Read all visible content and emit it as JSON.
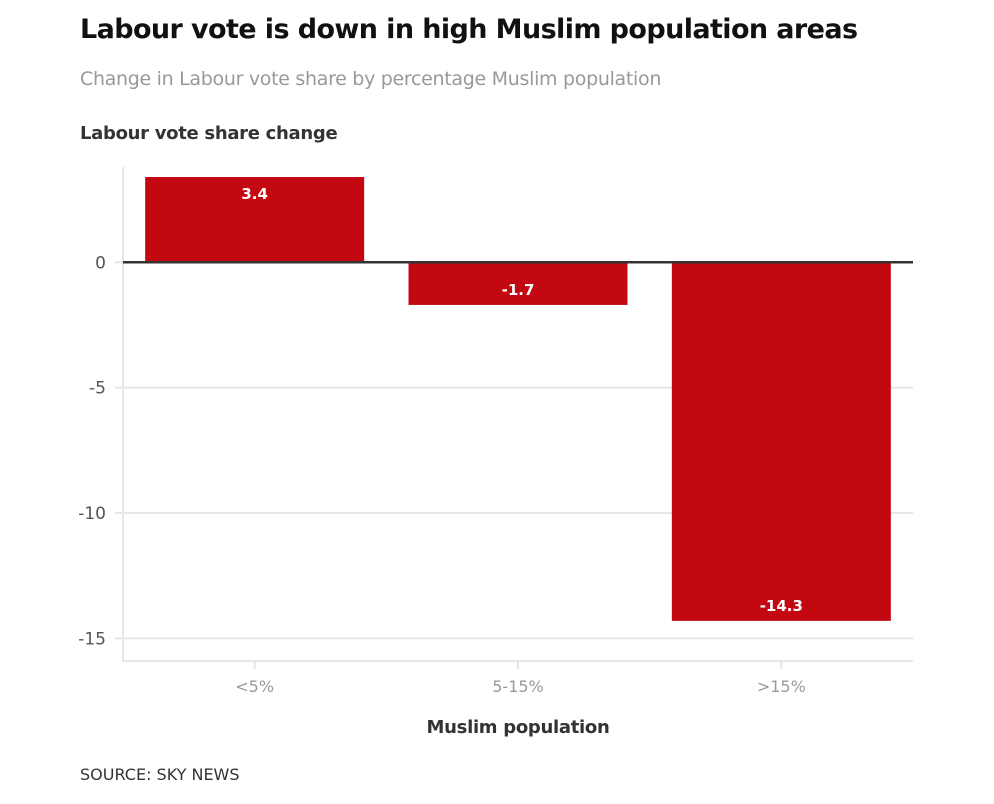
{
  "chart_data": {
    "type": "bar",
    "title": "Labour vote is down in high Muslim population areas",
    "subtitle": "Change in Labour vote share by percentage Muslim population",
    "ylabel": "Labour vote share change",
    "xlabel": "Muslim population",
    "categories": [
      "<5%",
      "5-15%",
      ">15%"
    ],
    "values": [
      3.4,
      -1.7,
      -14.3
    ],
    "data_labels": [
      "3.4",
      "-1.7",
      "-14.3"
    ],
    "ylim": [
      -15.9,
      3.8
    ],
    "yticks": [
      0,
      -5,
      -10,
      -15
    ],
    "grid": true,
    "bar_color": "#c40812",
    "source": "SOURCE: SKY NEWS"
  }
}
